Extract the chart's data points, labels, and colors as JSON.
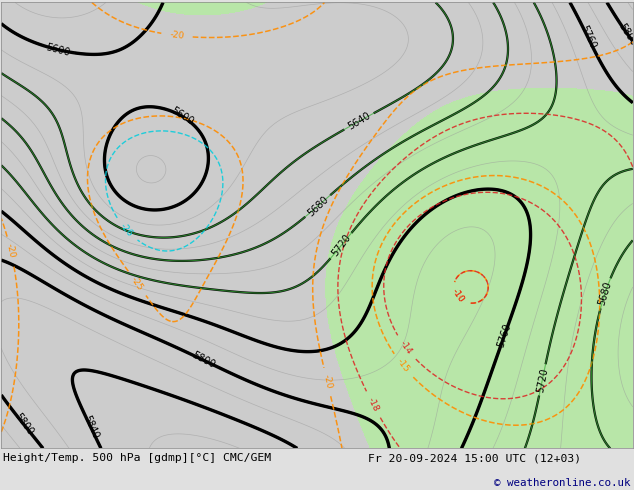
{
  "title_left": "Height/Temp. 500 hPa [gdmp][°C] CMC/GEM",
  "title_right": "Fr 20-09-2024 15:00 UTC (12+03)",
  "copyright": "© weatheronline.co.uk",
  "bg_color": "#e0e0e0",
  "map_bg": "#cccccc",
  "green_fill": "#b8e6a8",
  "fig_width": 6.34,
  "fig_height": 4.9
}
